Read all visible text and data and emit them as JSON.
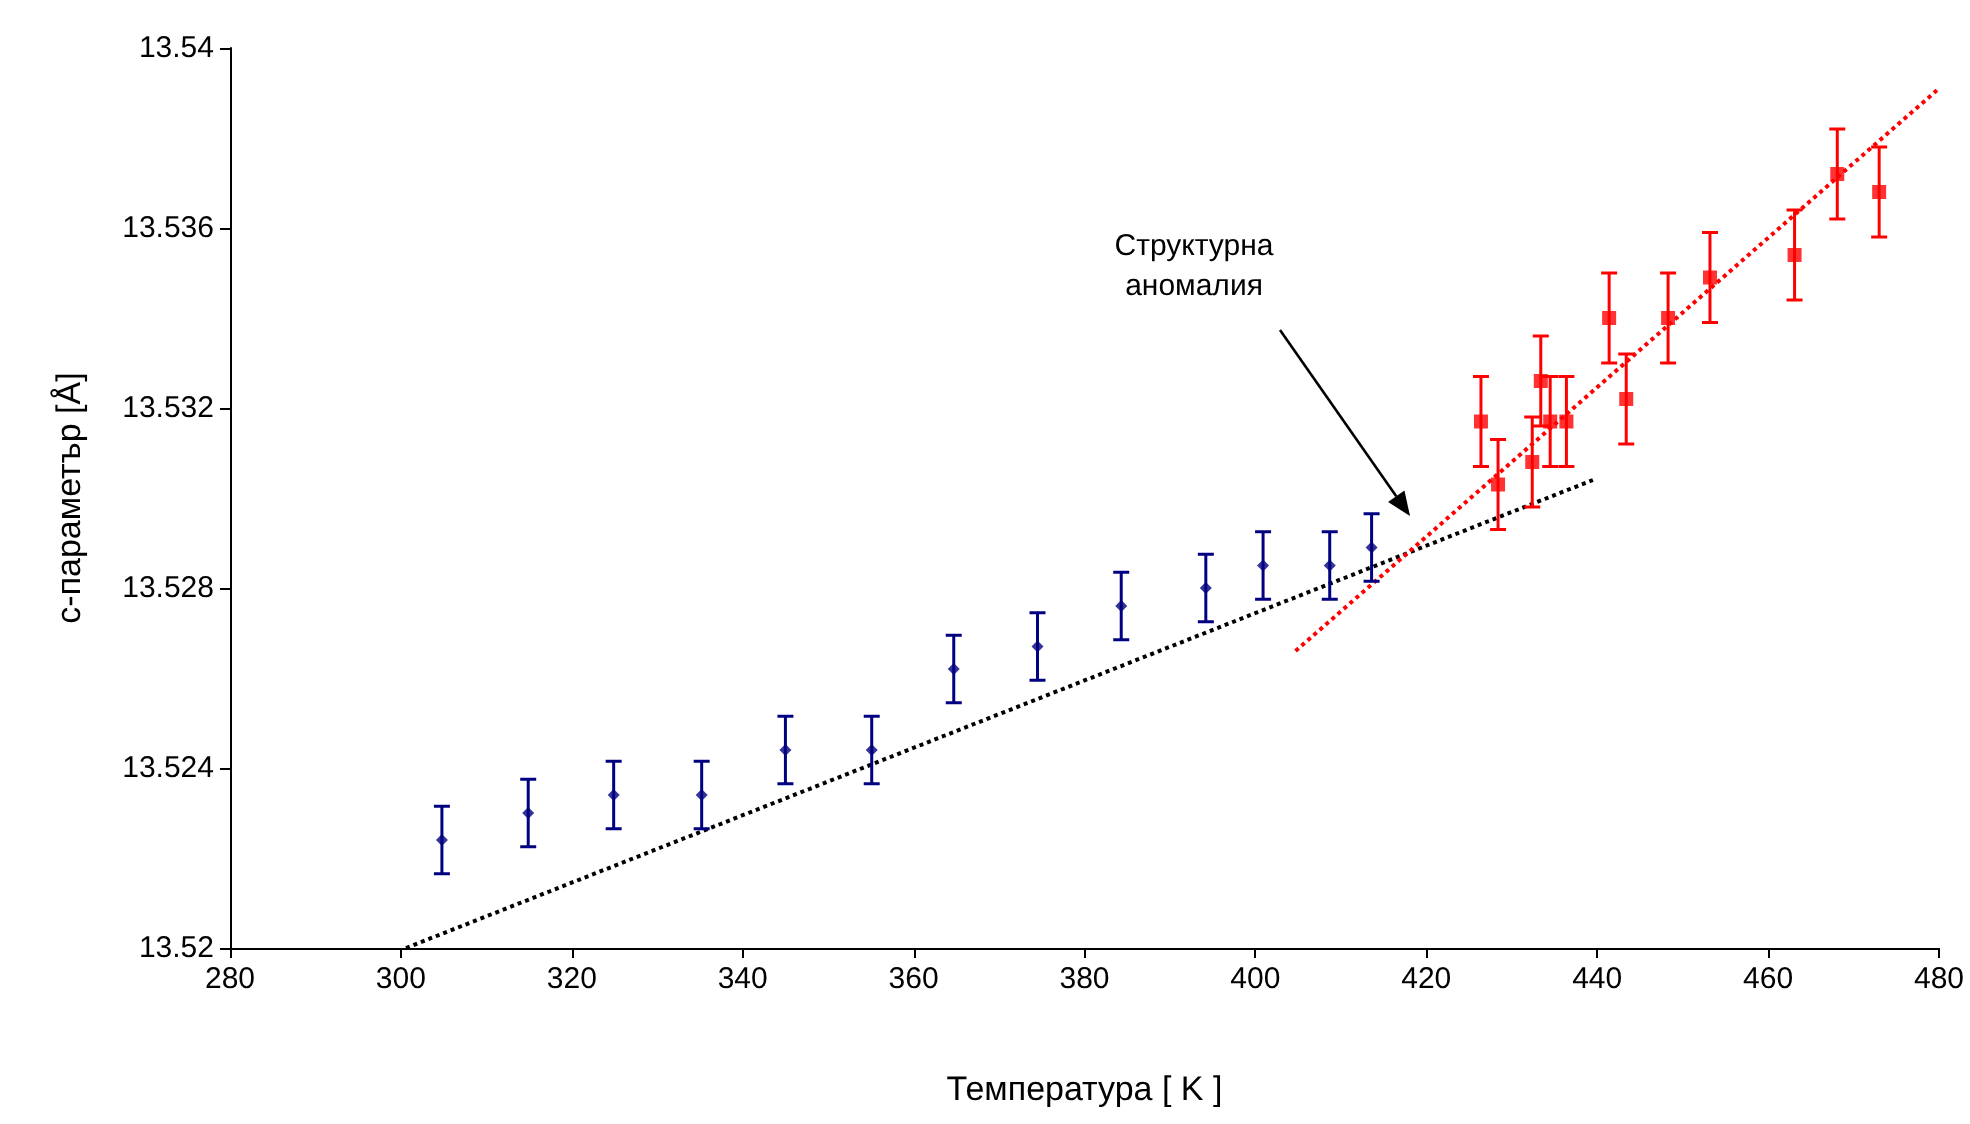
{
  "chart_data": {
    "type": "scatter",
    "xlabel": "Температура [ K ]",
    "ylabel": "c-параметър [Å]",
    "xlim": [
      280,
      480
    ],
    "xticks": [
      280,
      300,
      320,
      340,
      360,
      380,
      400,
      420,
      440,
      460,
      480
    ],
    "ylim": [
      13.52,
      13.54
    ],
    "yticks": [
      13.52,
      13.524,
      13.528,
      13.532,
      13.536,
      13.54
    ],
    "grid": false,
    "annotations": [
      "Структурна аномалия"
    ],
    "series": [
      {
        "color": "#000080",
        "marker": "diamond",
        "x": [
          304.8,
          314.9,
          324.9,
          335.2,
          345.0,
          355.1,
          364.7,
          374.5,
          384.3,
          394.2,
          400.9,
          408.7,
          413.6
        ],
        "values": [
          13.5224,
          13.523,
          13.5234,
          13.5234,
          13.5244,
          13.5244,
          13.5262,
          13.5267,
          13.5276,
          13.528,
          13.5285,
          13.5285,
          13.5289
        ],
        "errors": [
          0.00075,
          0.00075,
          0.00075,
          0.00075,
          0.00075,
          0.00075,
          0.00075,
          0.00075,
          0.00075,
          0.00075,
          0.00075,
          0.00075,
          0.00075
        ]
      },
      {
        "color": "#ff0000",
        "marker": "square",
        "x": [
          426.4,
          428.4,
          432.4,
          433.4,
          434.5,
          436.4,
          441.4,
          443.4,
          448.3,
          453.2,
          463.1,
          468.1,
          473.0
        ],
        "values": [
          13.5317,
          13.5303,
          13.5308,
          13.5326,
          13.5317,
          13.5317,
          13.534,
          13.5322,
          13.534,
          13.5349,
          13.5354,
          13.5372,
          13.5368
        ],
        "errors": [
          0.001,
          0.001,
          0.001,
          0.001,
          0.001,
          0.001,
          0.001,
          0.001,
          0.001,
          0.001,
          0.001,
          0.001,
          0.001
        ]
      },
      {
        "type": "line",
        "color": "#000000",
        "line_style": "dotted",
        "x": [
          300.6,
          439.5
        ],
        "values": [
          13.52,
          13.5304
        ]
      },
      {
        "type": "line",
        "color": "#ff0000",
        "line_style": "dotted",
        "x": [
          404.7,
          480
        ],
        "values": [
          13.5266,
          13.5391
        ]
      }
    ]
  }
}
